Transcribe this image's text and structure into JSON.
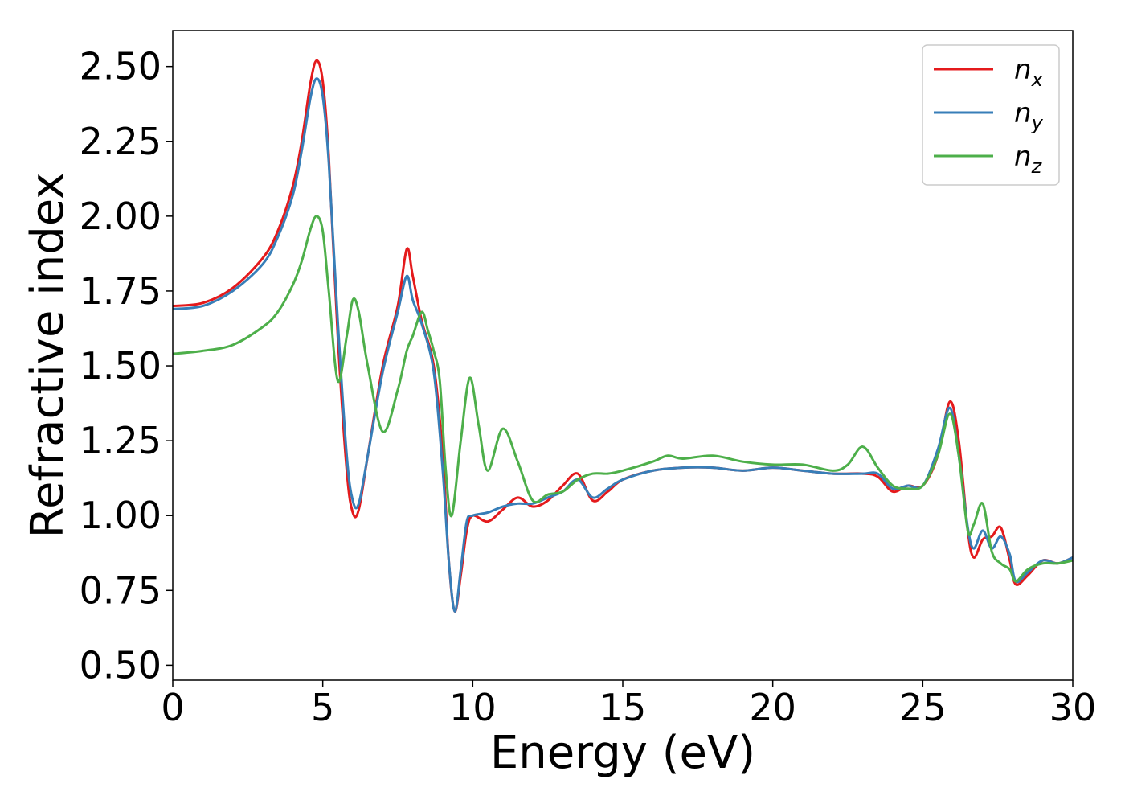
{
  "chart_data": {
    "type": "line",
    "xlabel": "Energy (eV)",
    "ylabel": "Refractive index",
    "xlim": [
      0,
      30
    ],
    "ylim": [
      0.45,
      2.62
    ],
    "x_ticks": [
      0,
      5,
      10,
      15,
      20,
      25,
      30
    ],
    "y_ticks": [
      0.5,
      0.75,
      1.0,
      1.25,
      1.5,
      1.75,
      2.0,
      2.25,
      2.5
    ],
    "x_tick_labels": [
      "0",
      "5",
      "10",
      "15",
      "20",
      "25",
      "30"
    ],
    "y_tick_labels": [
      "0.50",
      "0.75",
      "1.00",
      "1.25",
      "1.50",
      "1.75",
      "2.00",
      "2.25",
      "2.50"
    ],
    "grid": false,
    "legend_position": "top-right",
    "series": [
      {
        "name": "n",
        "subscript": "x",
        "color": "#e41a1c",
        "x": [
          0,
          1,
          2,
          3,
          3.5,
          4,
          4.3,
          4.6,
          4.8,
          5.0,
          5.2,
          5.5,
          5.8,
          6.0,
          6.2,
          6.5,
          7.0,
          7.5,
          7.8,
          8.0,
          8.3,
          8.7,
          9.0,
          9.2,
          9.4,
          9.6,
          9.8,
          10.0,
          10.5,
          11.0,
          11.5,
          12.0,
          12.5,
          13.0,
          13.5,
          14.0,
          14.5,
          15.0,
          16.0,
          17.0,
          18.0,
          19.0,
          20.0,
          21.0,
          22.0,
          23.0,
          23.5,
          24.0,
          24.5,
          25.0,
          25.5,
          25.9,
          26.2,
          26.5,
          26.7,
          27.0,
          27.3,
          27.6,
          27.9,
          28.1,
          28.5,
          29.0,
          29.5,
          30.0
        ],
        "y": [
          1.7,
          1.71,
          1.76,
          1.86,
          1.95,
          2.1,
          2.25,
          2.45,
          2.52,
          2.45,
          2.2,
          1.6,
          1.15,
          1.01,
          1.02,
          1.2,
          1.5,
          1.7,
          1.89,
          1.8,
          1.65,
          1.5,
          1.2,
          0.85,
          0.68,
          0.8,
          0.95,
          1.0,
          0.98,
          1.02,
          1.06,
          1.03,
          1.05,
          1.1,
          1.14,
          1.05,
          1.08,
          1.12,
          1.15,
          1.16,
          1.16,
          1.15,
          1.16,
          1.15,
          1.14,
          1.14,
          1.13,
          1.08,
          1.1,
          1.1,
          1.2,
          1.38,
          1.25,
          0.95,
          0.86,
          0.92,
          0.93,
          0.96,
          0.85,
          0.77,
          0.8,
          0.85,
          0.84,
          0.86
        ]
      },
      {
        "name": "n",
        "subscript": "y",
        "color": "#377eb8",
        "x": [
          0,
          1,
          2,
          3,
          3.5,
          4,
          4.3,
          4.6,
          4.8,
          5.0,
          5.2,
          5.5,
          5.8,
          6.0,
          6.2,
          6.5,
          7.0,
          7.5,
          7.8,
          8.0,
          8.3,
          8.7,
          9.0,
          9.2,
          9.4,
          9.6,
          9.8,
          10.0,
          10.5,
          11.0,
          11.5,
          12.0,
          12.5,
          13.0,
          13.5,
          14.0,
          14.5,
          15.0,
          16.0,
          17.0,
          18.0,
          19.0,
          20.0,
          21.0,
          22.0,
          23.0,
          23.5,
          24.0,
          24.5,
          25.0,
          25.5,
          25.9,
          26.2,
          26.5,
          26.7,
          27.0,
          27.3,
          27.6,
          27.9,
          28.1,
          28.5,
          29.0,
          29.5,
          30.0
        ],
        "y": [
          1.69,
          1.7,
          1.75,
          1.84,
          1.93,
          2.07,
          2.22,
          2.4,
          2.46,
          2.4,
          2.18,
          1.65,
          1.2,
          1.05,
          1.04,
          1.2,
          1.48,
          1.68,
          1.8,
          1.72,
          1.64,
          1.48,
          1.15,
          0.85,
          0.68,
          0.82,
          0.98,
          1.0,
          1.01,
          1.03,
          1.04,
          1.04,
          1.06,
          1.08,
          1.12,
          1.06,
          1.09,
          1.12,
          1.15,
          1.16,
          1.16,
          1.15,
          1.16,
          1.15,
          1.14,
          1.14,
          1.14,
          1.09,
          1.1,
          1.1,
          1.22,
          1.36,
          1.2,
          0.96,
          0.89,
          0.95,
          0.89,
          0.93,
          0.87,
          0.78,
          0.81,
          0.85,
          0.84,
          0.86
        ]
      },
      {
        "name": "n",
        "subscript": "z",
        "color": "#4daf4a",
        "x": [
          0,
          1,
          2,
          3,
          3.5,
          4,
          4.3,
          4.6,
          4.8,
          5.0,
          5.2,
          5.5,
          5.8,
          6.0,
          6.2,
          6.5,
          7.0,
          7.5,
          7.8,
          8.0,
          8.3,
          8.5,
          8.7,
          8.9,
          9.1,
          9.3,
          9.6,
          9.9,
          10.2,
          10.5,
          11.0,
          11.5,
          12.0,
          12.5,
          13.0,
          13.5,
          14.0,
          14.5,
          15.0,
          16.0,
          16.5,
          17.0,
          18.0,
          19.0,
          20.0,
          21.0,
          22.0,
          22.5,
          23.0,
          23.5,
          24.0,
          24.5,
          25.0,
          25.5,
          25.9,
          26.2,
          26.5,
          26.7,
          27.0,
          27.3,
          27.6,
          27.9,
          28.1,
          28.5,
          29.0,
          29.5,
          30.0
        ],
        "y": [
          1.54,
          1.55,
          1.57,
          1.63,
          1.68,
          1.77,
          1.85,
          1.96,
          2.0,
          1.95,
          1.75,
          1.45,
          1.6,
          1.72,
          1.68,
          1.5,
          1.28,
          1.42,
          1.55,
          1.6,
          1.68,
          1.62,
          1.55,
          1.45,
          1.15,
          1.0,
          1.25,
          1.46,
          1.3,
          1.15,
          1.29,
          1.18,
          1.05,
          1.07,
          1.08,
          1.12,
          1.14,
          1.14,
          1.15,
          1.18,
          1.2,
          1.19,
          1.2,
          1.18,
          1.17,
          1.17,
          1.15,
          1.17,
          1.23,
          1.16,
          1.1,
          1.09,
          1.1,
          1.2,
          1.34,
          1.2,
          0.95,
          0.97,
          1.04,
          0.88,
          0.84,
          0.82,
          0.78,
          0.82,
          0.84,
          0.84,
          0.85
        ]
      }
    ]
  }
}
